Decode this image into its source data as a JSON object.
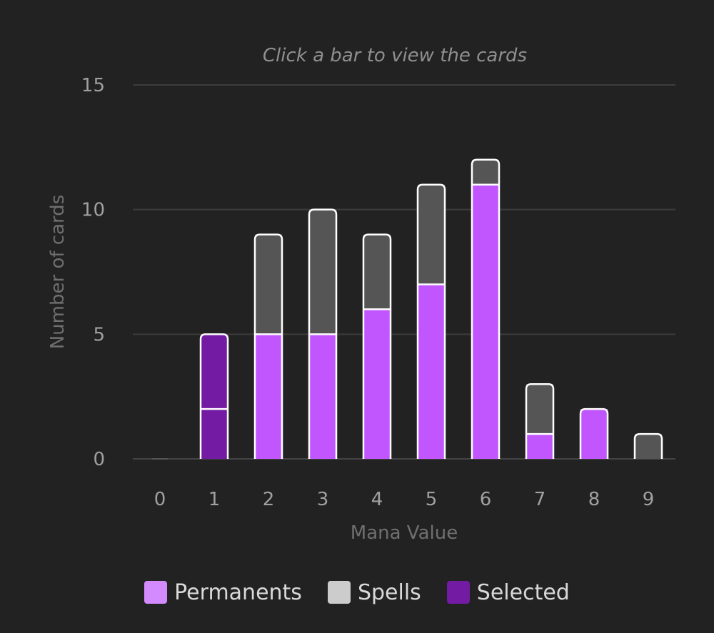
{
  "colors": {
    "background": "#222222",
    "permanents": "#c156ff",
    "spells": "#555555",
    "selected": "#731ba3",
    "bar_outline": "#ffffff",
    "grid": "#3c3c3c",
    "axis": "#444444",
    "tick_text": "#a0a0a0",
    "axis_title": "#6f6f6f",
    "hint_text": "#8f8f8f"
  },
  "chart_data": {
    "type": "bar",
    "stacked": true,
    "hint": "Click a bar to view the cards",
    "xlabel": "Mana Value",
    "ylabel": "Number of cards",
    "categories": [
      "0",
      "1",
      "2",
      "3",
      "4",
      "5",
      "6",
      "7",
      "8",
      "9"
    ],
    "ylim": [
      0,
      15
    ],
    "yticks": [
      0,
      5,
      10,
      15
    ],
    "grid": true,
    "selected_category": "1",
    "series": [
      {
        "name": "Permanents",
        "values": [
          0,
          2,
          5,
          5,
          6,
          7,
          11,
          1,
          2,
          0
        ]
      },
      {
        "name": "Spells",
        "values": [
          0,
          3,
          4,
          5,
          3,
          4,
          1,
          2,
          0,
          1
        ]
      }
    ],
    "legend": {
      "position": "bottom",
      "items": [
        {
          "label": "Permanents",
          "color": "#d28afc"
        },
        {
          "label": "Spells",
          "color": "#cccccc"
        },
        {
          "label": "Selected",
          "color": "#731ba3"
        }
      ]
    }
  }
}
